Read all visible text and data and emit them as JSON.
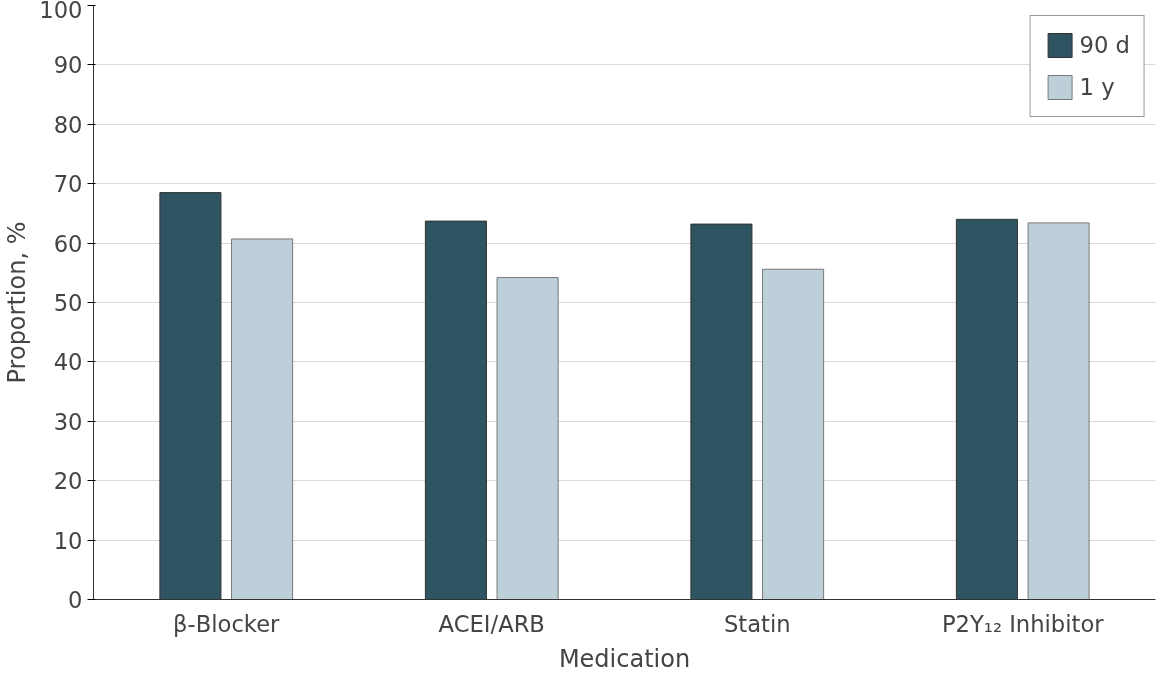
{
  "chart_data": {
    "type": "bar",
    "xlabel": "Medication",
    "ylabel": "Proportion, %",
    "categories": [
      "β-Blocker",
      "ACEI/ARB",
      "Statin",
      "P2Y₁₂ Inhibitor"
    ],
    "series": [
      {
        "name": "90 d",
        "color": "#2e5361",
        "values": [
          68.5,
          63.7,
          63.2,
          64.0
        ]
      },
      {
        "name": "1 y",
        "color": "#bdd0d9",
        "values": [
          60.7,
          54.2,
          55.6,
          63.4
        ]
      }
    ],
    "ylim": [
      0,
      100
    ],
    "yticks": [
      0,
      10,
      20,
      30,
      40,
      50,
      60,
      70,
      80,
      90,
      100
    ],
    "grid": "y",
    "legend": "top right"
  }
}
